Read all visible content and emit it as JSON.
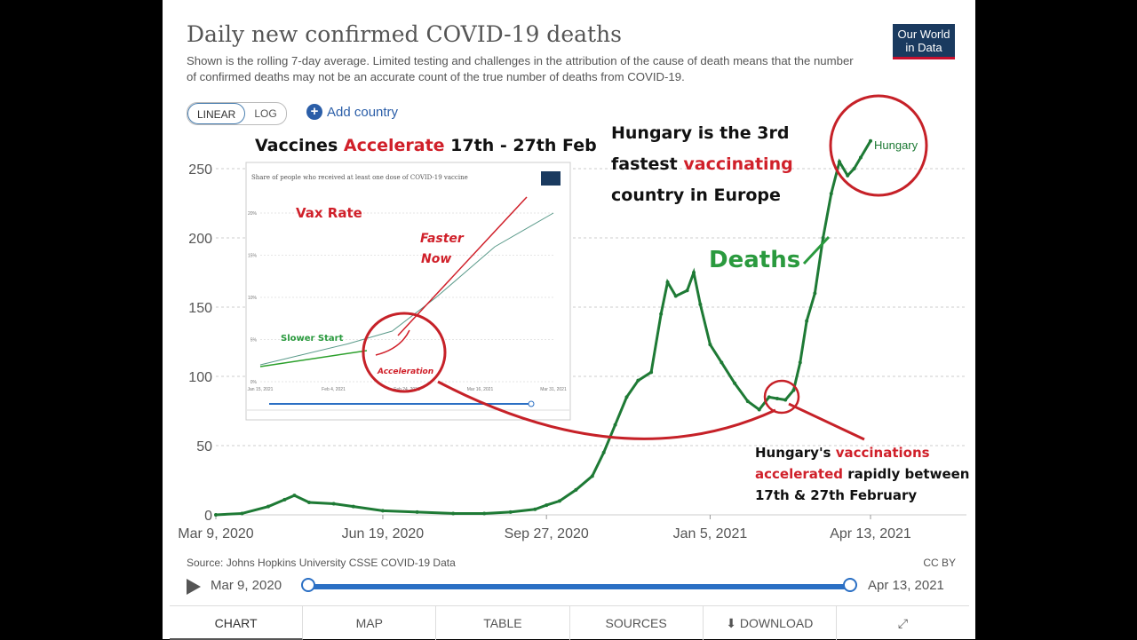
{
  "header": {
    "title": "Daily new confirmed COVID-19 deaths",
    "subtitle": "Shown is the rolling 7-day average. Limited testing and challenges in the attribution of the cause of death means that the number of confirmed deaths may not be an accurate count of the true number of deaths from COVID-19.",
    "logo": "Our World in Data"
  },
  "controls": {
    "linear": "LINEAR",
    "log": "LOG",
    "add_country": "Add country"
  },
  "annotations": {
    "vaccines_1": "Vaccines ",
    "vaccines_red": "Accelerate",
    "vaccines_2": " 17th - 27th Feb",
    "hungary_1": "Hungary is the 3rd",
    "hungary_2a": "fastest ",
    "hungary_2red": "vaccinating",
    "hungary_3": "country in Europe",
    "deaths": "Deaths",
    "vax_rate": "Vax Rate",
    "faster": "Faster",
    "now": "Now",
    "slower_start": "Slower Start",
    "acceleration": "Acceleration",
    "bottom_1a": "Hungary's ",
    "bottom_1red": "vaccinations",
    "bottom_2red": "accelerated",
    "bottom_2b": " rapidly between",
    "bottom_3": "17th & 27th February",
    "inset_title": "Share of people who received at least one dose of COVID-19 vaccine"
  },
  "chart_data": {
    "type": "line",
    "title": "Daily new confirmed COVID-19 deaths",
    "ylim": [
      0,
      250
    ],
    "yticks": [
      0,
      50,
      100,
      150,
      200,
      250
    ],
    "xticks": [
      "Mar 9, 2020",
      "Jun 19, 2020",
      "Sep 27, 2020",
      "Jan 5, 2021",
      "Apr 13, 2021"
    ],
    "series": [
      {
        "name": "Hungary",
        "color": "#1e7a35",
        "points": [
          [
            "2020-03-09",
            0
          ],
          [
            "2020-03-25",
            1
          ],
          [
            "2020-04-10",
            6
          ],
          [
            "2020-04-20",
            11
          ],
          [
            "2020-04-26",
            14
          ],
          [
            "2020-05-05",
            9
          ],
          [
            "2020-05-20",
            8
          ],
          [
            "2020-06-01",
            6
          ],
          [
            "2020-06-19",
            3
          ],
          [
            "2020-07-10",
            2
          ],
          [
            "2020-08-01",
            1
          ],
          [
            "2020-08-20",
            1
          ],
          [
            "2020-09-05",
            2
          ],
          [
            "2020-09-20",
            4
          ],
          [
            "2020-09-27",
            7
          ],
          [
            "2020-10-05",
            10
          ],
          [
            "2020-10-15",
            18
          ],
          [
            "2020-10-25",
            28
          ],
          [
            "2020-11-01",
            45
          ],
          [
            "2020-11-08",
            65
          ],
          [
            "2020-11-15",
            85
          ],
          [
            "2020-11-22",
            97
          ],
          [
            "2020-11-30",
            103
          ],
          [
            "2020-12-06",
            145
          ],
          [
            "2020-12-10",
            168
          ],
          [
            "2020-12-15",
            158
          ],
          [
            "2020-12-22",
            162
          ],
          [
            "2020-12-26",
            175
          ],
          [
            "2020-12-30",
            152
          ],
          [
            "2021-01-05",
            123
          ],
          [
            "2021-01-12",
            110
          ],
          [
            "2021-01-20",
            95
          ],
          [
            "2021-01-28",
            82
          ],
          [
            "2021-02-04",
            76
          ],
          [
            "2021-02-10",
            85
          ],
          [
            "2021-02-15",
            84
          ],
          [
            "2021-02-20",
            83
          ],
          [
            "2021-02-25",
            90
          ],
          [
            "2021-03-01",
            110
          ],
          [
            "2021-03-05",
            140
          ],
          [
            "2021-03-10",
            160
          ],
          [
            "2021-03-15",
            200
          ],
          [
            "2021-03-20",
            232
          ],
          [
            "2021-03-25",
            255
          ],
          [
            "2021-03-30",
            245
          ],
          [
            "2021-04-03",
            250
          ],
          [
            "2021-04-07",
            258
          ],
          [
            "2021-04-13",
            270
          ]
        ]
      }
    ]
  },
  "inset_chart": {
    "type": "line",
    "ylabels": [
      "20%",
      "15%",
      "10%",
      "5%",
      "0%"
    ],
    "xlabels": [
      "Jan 15, 2021",
      "Feb 4, 2021",
      "Feb 24, 2021",
      "Mar 16, 2021",
      "Mar 31, 2021"
    ],
    "series": [
      {
        "name": "Hungary",
        "points": [
          [
            0,
            2
          ],
          [
            0.3,
            4.5
          ],
          [
            0.45,
            6
          ],
          [
            0.6,
            10
          ],
          [
            0.8,
            16
          ],
          [
            1,
            20
          ]
        ]
      }
    ]
  },
  "footer": {
    "source": "Source: Johns Hopkins University CSSE COVID-19 Data",
    "license": "CC BY",
    "timeline_start": "Mar 9, 2020",
    "timeline_end": "Apr 13, 2021"
  },
  "tabs": [
    "CHART",
    "MAP",
    "TABLE",
    "SOURCES",
    "DOWNLOAD",
    "⤢"
  ],
  "colors": {
    "line": "#1e7a35",
    "annotation_red": "#d0202a",
    "accent_blue": "#2a6fc4"
  }
}
